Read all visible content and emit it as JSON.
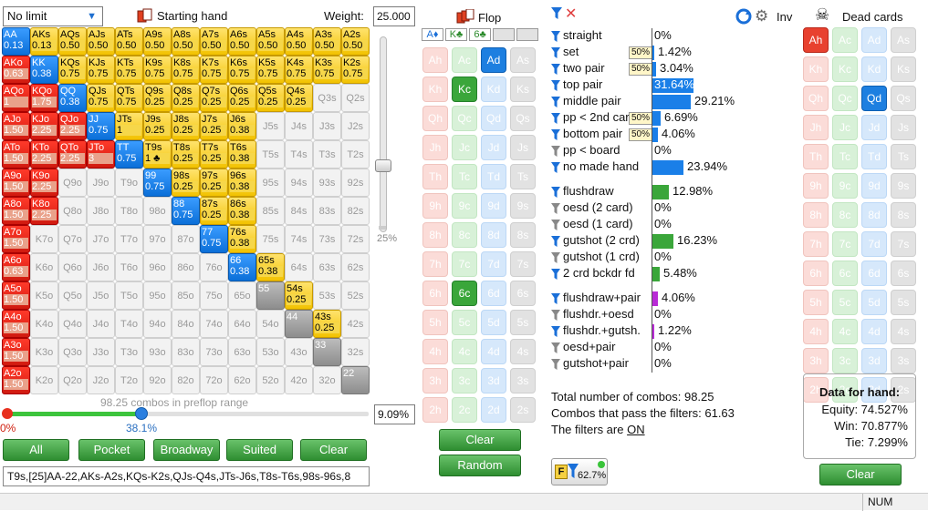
{
  "left": {
    "limit": "No limit",
    "starting_hand": "Starting hand",
    "weight_label": "Weight:",
    "weight_value": "25.000",
    "slider_pct": "25%",
    "combos_text": "98.25 combos in preflop range",
    "range_pct": "9.09%",
    "bar_start": "0%",
    "bar_value": "38.1%",
    "range_text": "T9s,[25]AA-22,AKs-A2s,KQs-K2s,QJs-Q4s,JTs-J6s,T8s-T6s,98s-96s,8"
  },
  "buttons": {
    "all": "All",
    "pocket": "Pocket",
    "broadway": "Broadway",
    "suited": "Suited",
    "clear": "Clear"
  },
  "hands": [
    [
      "AA|0.13",
      "AKs|0.13",
      "AQs|0.50",
      "AJs|0.50",
      "ATs|0.50",
      "A9s|0.50",
      "A8s|0.50",
      "A7s|0.50",
      "A6s|0.50",
      "A5s|0.50",
      "A4s|0.50",
      "A3s|0.50",
      "A2s|0.50"
    ],
    [
      "AKo|0.63",
      "KK|0.38",
      "KQs|0.75",
      "KJs|0.75",
      "KTs|0.75",
      "K9s|0.75",
      "K8s|0.75",
      "K7s|0.75",
      "K6s|0.75",
      "K5s|0.75",
      "K4s|0.75",
      "K3s|0.75",
      "K2s|0.75"
    ],
    [
      "AQo|1",
      "KQo|1.75",
      "QQ|0.38",
      "QJs|0.75",
      "QTs|0.75",
      "Q9s|0.25",
      "Q8s|0.25",
      "Q7s|0.25",
      "Q6s|0.25",
      "Q5s|0.25",
      "Q4s|0.25",
      "Q3s|",
      "Q2s|"
    ],
    [
      "AJo|1.50",
      "KJo|2.25",
      "QJo|2.25",
      "JJ|0.75",
      "JTs|1",
      "J9s|0.25",
      "J8s|0.25",
      "J7s|0.25",
      "J6s|0.38",
      "J5s|",
      "J4s|",
      "J3s|",
      "J2s|"
    ],
    [
      "ATo|1.50",
      "KTo|2.25",
      "QTo|2.25",
      "JTo|3",
      "TT|0.75",
      "T9s|1 ♣",
      "T8s|0.25",
      "T7s|0.25",
      "T6s|0.38",
      "T5s|",
      "T4s|",
      "T3s|",
      "T2s|"
    ],
    [
      "A9o|1.50",
      "K9o|2.25",
      "Q9o|",
      "J9o|",
      "T9o|",
      "99|0.75",
      "98s|0.25",
      "97s|0.25",
      "96s|0.38",
      "95s|",
      "94s|",
      "93s|",
      "92s|"
    ],
    [
      "A8o|1.50",
      "K8o|2.25",
      "Q8o|",
      "J8o|",
      "T8o|",
      "98o|",
      "88|0.75",
      "87s|0.25",
      "86s|0.38",
      "85s|",
      "84s|",
      "83s|",
      "82s|"
    ],
    [
      "A7o|1.50",
      "K7o|",
      "Q7o|",
      "J7o|",
      "T7o|",
      "97o|",
      "87o|",
      "77|0.75",
      "76s|0.38",
      "75s|",
      "74s|",
      "73s|",
      "72s|"
    ],
    [
      "A6o|0.63",
      "K6o|",
      "Q6o|",
      "J6o|",
      "T6o|",
      "96o|",
      "86o|",
      "76o|",
      "66|0.38",
      "65s|0.38",
      "64s|",
      "63s|",
      "62s|"
    ],
    [
      "A5o|1.50",
      "K5o|",
      "Q5o|",
      "J5o|",
      "T5o|",
      "95o|",
      "85o|",
      "75o|",
      "65o|",
      "55|",
      "54s|0.25",
      "53s|",
      "52s|"
    ],
    [
      "A4o|1.50",
      "K4o|",
      "Q4o|",
      "J4o|",
      "T4o|",
      "94o|",
      "84o|",
      "74o|",
      "64o|",
      "54o|",
      "44|",
      "43s|0.25",
      "42s|"
    ],
    [
      "A3o|1.50",
      "K3o|",
      "Q3o|",
      "J3o|",
      "T3o|",
      "93o|",
      "83o|",
      "73o|",
      "63o|",
      "53o|",
      "43o|",
      "33|",
      "32s|"
    ],
    [
      "A2o|1.50",
      "K2o|",
      "Q2o|",
      "J2o|",
      "T2o|",
      "92o|",
      "82o|",
      "72o|",
      "62o|",
      "52o|",
      "42o|",
      "32o|",
      "22|"
    ]
  ],
  "flop": {
    "title": "Flop",
    "slots": [
      "A♦",
      "K♣",
      "6♣"
    ],
    "clear": "Clear",
    "random": "Random"
  },
  "board_cards": [
    [
      "Ah",
      "Ac",
      "Ad",
      "As"
    ],
    [
      "Kh",
      "Kc",
      "Kd",
      "Ks"
    ],
    [
      "Qh",
      "Qc",
      "Qd",
      "Qs"
    ],
    [
      "Jh",
      "Jc",
      "Jd",
      "Js"
    ],
    [
      "Th",
      "Tc",
      "Td",
      "Ts"
    ],
    [
      "9h",
      "9c",
      "9d",
      "9s"
    ],
    [
      "8h",
      "8c",
      "8d",
      "8s"
    ],
    [
      "7h",
      "7c",
      "7d",
      "7s"
    ],
    [
      "6h",
      "6c",
      "6d",
      "6s"
    ],
    [
      "5h",
      "5c",
      "5d",
      "5s"
    ],
    [
      "4h",
      "4c",
      "4d",
      "4s"
    ],
    [
      "3h",
      "3c",
      "3d",
      "3s"
    ],
    [
      "2h",
      "2c",
      "2d",
      "2s"
    ]
  ],
  "filters": [
    {
      "name": "straight",
      "pct": "0%",
      "bar": 0,
      "tag": ""
    },
    {
      "name": "set",
      "pct": "1.42%",
      "bar": 0.045,
      "tag": "50%"
    },
    {
      "name": "two pair",
      "pct": "3.04%",
      "bar": 0.096,
      "tag": "50%"
    },
    {
      "name": "top pair",
      "pct": "31.64%",
      "bar": 1,
      "tag": ""
    },
    {
      "name": "middle pair",
      "pct": "29.21%",
      "bar": 0.923,
      "tag": ""
    },
    {
      "name": "pp < 2nd card",
      "pct": "6.69%",
      "bar": 0.211,
      "tag": "50%"
    },
    {
      "name": "bottom pair",
      "pct": "4.06%",
      "bar": 0.128,
      "tag": "50%"
    },
    {
      "name": "pp < board",
      "pct": "0%",
      "bar": 0,
      "tag": ""
    },
    {
      "name": "no made hand",
      "pct": "23.94%",
      "bar": 0.757,
      "tag": ""
    },
    {
      "name": "flushdraw",
      "pct": "12.98%",
      "bar": 0.41,
      "tag": ""
    },
    {
      "name": "oesd (2 card)",
      "pct": "0%",
      "bar": 0,
      "tag": ""
    },
    {
      "name": "oesd (1 card)",
      "pct": "0%",
      "bar": 0,
      "tag": ""
    },
    {
      "name": "gutshot (2 crd)",
      "pct": "16.23%",
      "bar": 0.513,
      "tag": ""
    },
    {
      "name": "gutshot (1 crd)",
      "pct": "0%",
      "bar": 0,
      "tag": ""
    },
    {
      "name": "2 crd bckdr fd",
      "pct": "5.48%",
      "bar": 0.173,
      "tag": ""
    },
    {
      "name": "flushdraw+pair",
      "pct": "4.06%",
      "bar": 0.128,
      "tag": ""
    },
    {
      "name": "flushdr.+oesd",
      "pct": "0%",
      "bar": 0,
      "tag": ""
    },
    {
      "name": "flushdr.+gutsh.",
      "pct": "1.22%",
      "bar": 0.039,
      "tag": ""
    },
    {
      "name": "oesd+pair",
      "pct": "0%",
      "bar": 0,
      "tag": ""
    },
    {
      "name": "gutshot+pair",
      "pct": "0%",
      "bar": 0,
      "tag": ""
    }
  ],
  "summary": {
    "total": "Total number of combos: 98.25",
    "pass": "Combos that pass the filters: 61.63",
    "filters_on": "The filters are ",
    "on": "ON",
    "badge": "62.7%"
  },
  "right": {
    "inv": "Inv",
    "dead": "Dead cards",
    "data_title": "Data for hand:",
    "equity": "Equity: 74.527%",
    "win": "Win: 70.877%",
    "tie": "Tie: 7.299%",
    "clear": "Clear"
  },
  "status": {
    "num": "NUM"
  },
  "colors": {
    "made": "#1a7fe8",
    "draw": "#3aa63a",
    "combo": "#b92bd6"
  }
}
